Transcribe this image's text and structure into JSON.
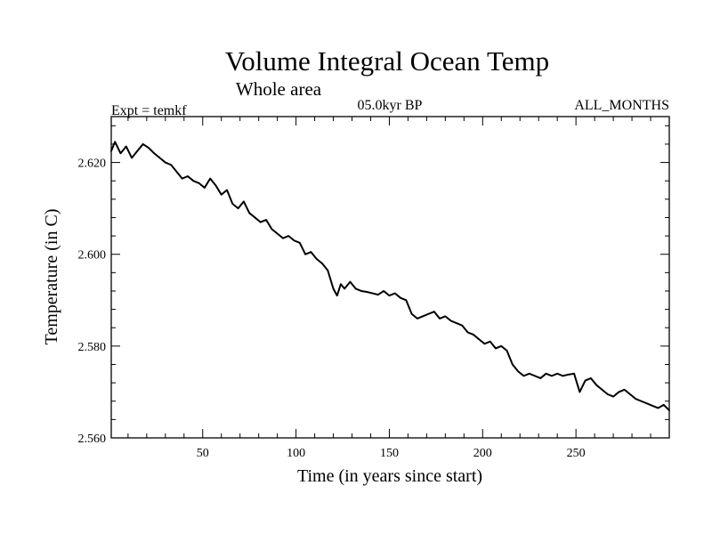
{
  "chart_data": {
    "type": "line",
    "title": "Volume Integral Ocean Temp",
    "subtitle": "Whole area",
    "left_label": "Expt = temkf",
    "center_label": "05.0kyr BP",
    "right_label": "ALL_MONTHS",
    "xlabel": "Time (in years since start)",
    "ylabel": "Temperature (in C)",
    "xlim": [
      1,
      300
    ],
    "ylim": [
      2.56,
      2.63
    ],
    "x_ticks": [
      50,
      100,
      150,
      200,
      250
    ],
    "x_tick_labels": [
      "50",
      "100",
      "150",
      "200",
      "250"
    ],
    "y_ticks": [
      2.56,
      2.58,
      2.6,
      2.62
    ],
    "y_tick_labels": [
      "2.560",
      "2.580",
      "2.600",
      "2.620"
    ],
    "series": [
      {
        "name": "temkf",
        "x": [
          1,
          3,
          6,
          9,
          12,
          15,
          18,
          21,
          24,
          27,
          30,
          33,
          36,
          39,
          42,
          45,
          48,
          51,
          54,
          57,
          60,
          63,
          66,
          69,
          72,
          75,
          78,
          81,
          84,
          87,
          90,
          93,
          96,
          99,
          102,
          105,
          108,
          111,
          114,
          117,
          120,
          122,
          124,
          126,
          129,
          132,
          135,
          138,
          141,
          144,
          147,
          150,
          153,
          156,
          159,
          162,
          165,
          168,
          171,
          174,
          177,
          180,
          183,
          186,
          189,
          192,
          195,
          198,
          201,
          204,
          207,
          210,
          213,
          216,
          219,
          222,
          225,
          228,
          231,
          234,
          237,
          240,
          243,
          246,
          249,
          252,
          255,
          258,
          261,
          264,
          267,
          270,
          273,
          276,
          279,
          282,
          285,
          288,
          291,
          294,
          297,
          300
        ],
        "values": [
          2.6225,
          2.6245,
          2.622,
          2.6235,
          2.621,
          2.6225,
          2.624,
          2.6232,
          2.622,
          2.621,
          2.62,
          2.6195,
          2.618,
          2.6165,
          2.617,
          2.616,
          2.6155,
          2.6145,
          2.6165,
          2.615,
          2.613,
          2.614,
          2.611,
          2.61,
          2.6115,
          2.609,
          2.608,
          2.607,
          2.6075,
          2.6055,
          2.6045,
          2.6035,
          2.604,
          2.603,
          2.6025,
          2.6,
          2.6005,
          2.599,
          2.598,
          2.5965,
          2.5925,
          2.591,
          2.5935,
          2.5925,
          2.594,
          2.5925,
          2.592,
          2.5918,
          2.5915,
          2.5912,
          2.592,
          2.591,
          2.5915,
          2.5905,
          2.59,
          2.587,
          2.586,
          2.5865,
          2.587,
          2.5875,
          2.586,
          2.5865,
          2.5855,
          2.585,
          2.5845,
          2.583,
          2.5825,
          2.5815,
          2.5805,
          2.581,
          2.5795,
          2.58,
          2.579,
          2.576,
          2.5745,
          2.5735,
          2.574,
          2.5735,
          2.573,
          2.574,
          2.5735,
          2.574,
          2.5735,
          2.5738,
          2.574,
          2.57,
          2.5725,
          2.573,
          2.5715,
          2.5705,
          2.5695,
          2.569,
          2.57,
          2.5705,
          2.5695,
          2.5685,
          2.568,
          2.5675,
          2.567,
          2.5665,
          2.5672,
          2.566
        ]
      }
    ]
  }
}
